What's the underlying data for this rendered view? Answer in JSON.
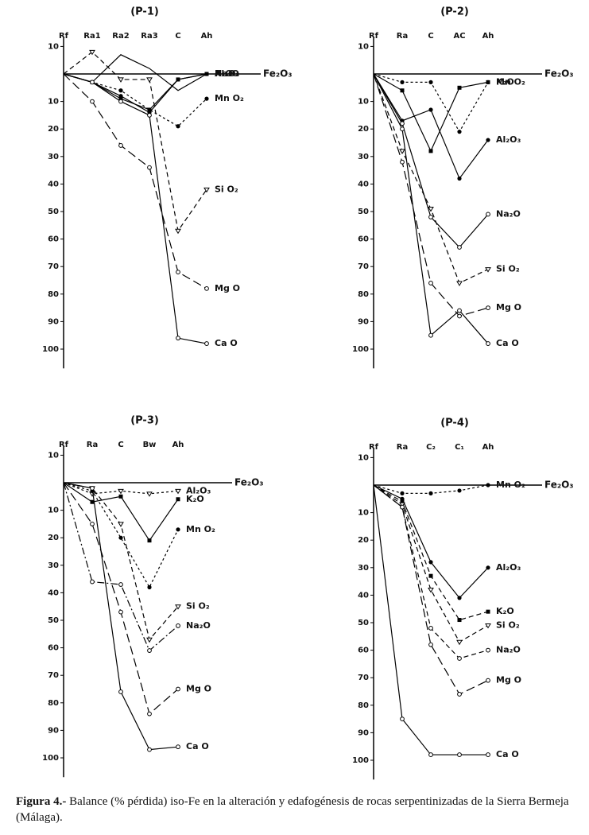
{
  "chart_data": [
    {
      "type": "line",
      "title": "(P-1)",
      "categories": [
        "Rf",
        "Ra1",
        "Ra2",
        "Ra3",
        "C",
        "Ah"
      ],
      "reference_label": "Fe₂O₃",
      "ylim": [
        -13,
        107
      ],
      "yticks": [
        {
          "value": -10,
          "label": "10"
        },
        10,
        20,
        30,
        40,
        50,
        60,
        70,
        80,
        90,
        100
      ],
      "series": [
        {
          "name": "Na₂O",
          "color": "#000000",
          "dash": "solid",
          "marker": "none",
          "values": [
            0,
            3,
            -7,
            -2,
            6,
            0
          ]
        },
        {
          "name": "K₂O",
          "color": "#000000",
          "dash": "solid",
          "marker": "square",
          "values": [
            0,
            3,
            9,
            13,
            2,
            0
          ]
        },
        {
          "name": "Al₂O₃",
          "color": "#000000",
          "dash": "solid",
          "marker": "dot",
          "values": [
            0,
            3,
            8,
            14,
            2,
            0
          ]
        },
        {
          "name": "Mn O₂",
          "color": "#000000",
          "dash": "dotted",
          "marker": "dot",
          "values": [
            0,
            3,
            6,
            13,
            19,
            9
          ]
        },
        {
          "name": "Si O₂",
          "color": "#000000",
          "dash": "dashed",
          "marker": "triangle",
          "values": [
            0,
            -8,
            2,
            2,
            57,
            42
          ]
        },
        {
          "name": "Mg O",
          "color": "#000000",
          "dash": "longdash",
          "marker": "circle",
          "values": [
            0,
            10,
            26,
            34,
            72,
            78
          ]
        },
        {
          "name": "Ca O",
          "color": "#000000",
          "dash": "solid",
          "marker": "circle",
          "values": [
            0,
            3,
            10,
            15,
            96,
            98
          ]
        }
      ]
    },
    {
      "type": "line",
      "title": "(P-2)",
      "categories": [
        "Rf",
        "Ra",
        "C",
        "AC",
        "Ah"
      ],
      "reference_label": "Fe₂O₃",
      "ylim": [
        -13,
        107
      ],
      "yticks": [
        {
          "value": -10,
          "label": "10"
        },
        10,
        20,
        30,
        40,
        50,
        60,
        70,
        80,
        90,
        100
      ],
      "series": [
        {
          "name": "K₂O",
          "color": "#000000",
          "dash": "solid",
          "marker": "square",
          "values": [
            0,
            6,
            28,
            5,
            3
          ]
        },
        {
          "name": "Mn O₂",
          "color": "#000000",
          "dash": "dotted",
          "marker": "dot",
          "values": [
            0,
            3,
            3,
            21,
            3
          ]
        },
        {
          "name": "Al₂O₃",
          "color": "#000000",
          "dash": "solid",
          "marker": "dot",
          "values": [
            0,
            17,
            13,
            38,
            24
          ]
        },
        {
          "name": "Na₂O",
          "color": "#000000",
          "dash": "solid",
          "marker": "circle",
          "values": [
            0,
            18,
            52,
            63,
            51
          ]
        },
        {
          "name": "Si O₂",
          "color": "#000000",
          "dash": "dashed",
          "marker": "triangle",
          "values": [
            0,
            28,
            49,
            76,
            71
          ]
        },
        {
          "name": "Mg O",
          "color": "#000000",
          "dash": "longdash",
          "marker": "circle",
          "values": [
            0,
            32,
            76,
            88,
            85
          ]
        },
        {
          "name": "Ca O",
          "color": "#000000",
          "dash": "solid",
          "marker": "circle",
          "values": [
            0,
            20,
            95,
            86,
            98
          ]
        }
      ]
    },
    {
      "type": "line",
      "title": "(P-3)",
      "categories": [
        "Rf",
        "Ra",
        "C",
        "Bw",
        "Ah"
      ],
      "reference_label": "Fe₂O₃",
      "ylim": [
        -13,
        107
      ],
      "yticks": [
        {
          "value": -10,
          "label": "10"
        },
        10,
        20,
        30,
        40,
        50,
        60,
        70,
        80,
        90,
        100
      ],
      "series": [
        {
          "name": "Al₂O₃",
          "color": "#000000",
          "dash": "dotted",
          "marker": "triangle",
          "values": [
            0,
            4,
            3,
            4,
            3
          ]
        },
        {
          "name": "K₂O",
          "color": "#000000",
          "dash": "solid",
          "marker": "square",
          "values": [
            0,
            7,
            5,
            21,
            6
          ]
        },
        {
          "name": "Mn O₂",
          "color": "#000000",
          "dash": "dotted",
          "marker": "dot",
          "values": [
            0,
            3,
            20,
            38,
            17
          ]
        },
        {
          "name": "Si O₂",
          "color": "#000000",
          "dash": "dashed",
          "marker": "triangle",
          "values": [
            0,
            2,
            15,
            57,
            45
          ]
        },
        {
          "name": "Na₂O",
          "color": "#000000",
          "dash": "dashdot",
          "marker": "circle",
          "values": [
            0,
            36,
            37,
            61,
            52
          ]
        },
        {
          "name": "Mg O",
          "color": "#000000",
          "dash": "longdash",
          "marker": "circle",
          "values": [
            0,
            15,
            47,
            84,
            75
          ]
        },
        {
          "name": "Ca O",
          "color": "#000000",
          "dash": "solid",
          "marker": "circle",
          "values": [
            0,
            2,
            76,
            97,
            96
          ]
        }
      ]
    },
    {
      "type": "line",
      "title": "(P-4)",
      "categories": [
        "Rf",
        "Ra",
        "C₂",
        "C₁",
        "Ah"
      ],
      "reference_label": "Fe₂O₃",
      "ylim": [
        -13,
        107
      ],
      "yticks": [
        {
          "value": -10,
          "label": "10"
        },
        10,
        20,
        30,
        40,
        50,
        60,
        70,
        80,
        90,
        100
      ],
      "series": [
        {
          "name": "Mn O₂",
          "color": "#000000",
          "dash": "dotted",
          "marker": "dot",
          "values": [
            0,
            3,
            3,
            2,
            0
          ]
        },
        {
          "name": "Al₂O₃",
          "color": "#000000",
          "dash": "solid",
          "marker": "dot",
          "values": [
            0,
            5,
            28,
            41,
            30
          ]
        },
        {
          "name": "K₂O",
          "color": "#000000",
          "dash": "dashed",
          "marker": "square",
          "values": [
            0,
            6,
            33,
            49,
            46
          ]
        },
        {
          "name": "Si O₂",
          "color": "#000000",
          "dash": "dashed",
          "marker": "triangle",
          "values": [
            0,
            7,
            38,
            57,
            51
          ]
        },
        {
          "name": "Na₂O",
          "color": "#000000",
          "dash": "dashed",
          "marker": "circle",
          "values": [
            0,
            8,
            52,
            63,
            60
          ]
        },
        {
          "name": "Mg O",
          "color": "#000000",
          "dash": "longdash",
          "marker": "circle",
          "values": [
            0,
            8,
            58,
            76,
            71
          ]
        },
        {
          "name": "Ca O",
          "color": "#000000",
          "dash": "solid",
          "marker": "circle",
          "values": [
            0,
            85,
            98,
            98,
            98
          ]
        }
      ]
    }
  ],
  "caption": {
    "label": "Figura 4.-",
    "text": "Balance (% pérdida) iso-Fe en la alteración y edafogénesis de rocas serpentinizadas de la Sierra Bermeja (Málaga)."
  }
}
